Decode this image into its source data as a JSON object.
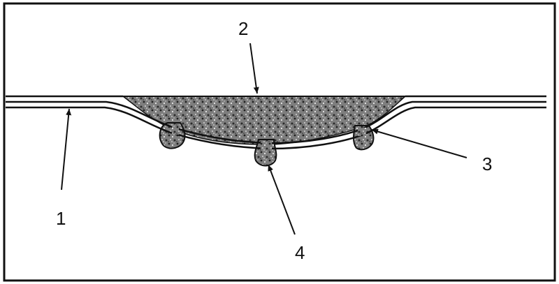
{
  "callouts": [
    {
      "id": "1",
      "label": "1"
    },
    {
      "id": "2",
      "label": "2"
    },
    {
      "id": "3",
      "label": "3"
    },
    {
      "id": "4",
      "label": "4"
    }
  ],
  "colors": {
    "line": "#111111",
    "border": "#111111",
    "filler": "#8a8a8a",
    "background": "#ffffff"
  }
}
